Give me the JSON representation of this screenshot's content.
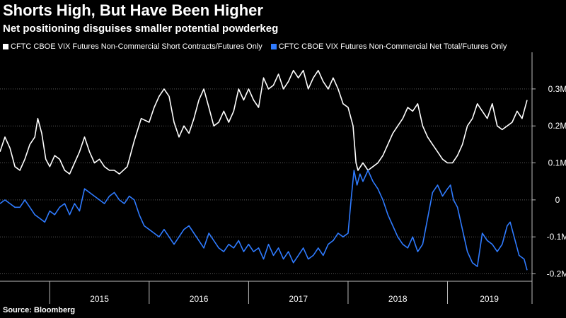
{
  "title": "Shorts High, But Have Been Higher",
  "subtitle": "Net positioning disguises smaller potential powderkeg",
  "source": "Source: Bloomberg",
  "chart_data": {
    "type": "line",
    "yticks": [
      0.3,
      0.2,
      0.1,
      0,
      -0.1,
      -0.2
    ],
    "ytick_labels": [
      "0.3M",
      "0.2M",
      "0.1M",
      "0",
      "-0.1M",
      "-0.2M"
    ],
    "ylim": [
      -0.22,
      0.38
    ],
    "xlim": [
      2014.5,
      2019.85
    ],
    "year_boundaries": [
      2015,
      2016,
      2017,
      2018,
      2019
    ],
    "year_labels": [
      {
        "label": "2015",
        "center": 2015.5
      },
      {
        "label": "2016",
        "center": 2016.5
      },
      {
        "label": "2017",
        "center": 2017.5
      },
      {
        "label": "2018",
        "center": 2018.5
      },
      {
        "label": "2019",
        "center": 2019.42
      }
    ],
    "series": [
      {
        "name": "CFTC CBOE VIX Futures Non-Commercial Short Contracts/Futures Only",
        "color": "#ffffff",
        "points": [
          [
            2014.5,
            0.13
          ],
          [
            2014.55,
            0.17
          ],
          [
            2014.6,
            0.14
          ],
          [
            2014.65,
            0.09
          ],
          [
            2014.7,
            0.08
          ],
          [
            2014.75,
            0.11
          ],
          [
            2014.8,
            0.15
          ],
          [
            2014.85,
            0.17
          ],
          [
            2014.88,
            0.22
          ],
          [
            2014.92,
            0.18
          ],
          [
            2014.96,
            0.11
          ],
          [
            2015.0,
            0.09
          ],
          [
            2015.05,
            0.12
          ],
          [
            2015.1,
            0.11
          ],
          [
            2015.15,
            0.08
          ],
          [
            2015.2,
            0.07
          ],
          [
            2015.25,
            0.1
          ],
          [
            2015.3,
            0.13
          ],
          [
            2015.35,
            0.17
          ],
          [
            2015.4,
            0.13
          ],
          [
            2015.45,
            0.1
          ],
          [
            2015.5,
            0.11
          ],
          [
            2015.55,
            0.09
          ],
          [
            2015.6,
            0.08
          ],
          [
            2015.65,
            0.08
          ],
          [
            2015.7,
            0.07
          ],
          [
            2015.78,
            0.09
          ],
          [
            2015.85,
            0.16
          ],
          [
            2015.92,
            0.22
          ],
          [
            2016.0,
            0.21
          ],
          [
            2016.05,
            0.25
          ],
          [
            2016.1,
            0.28
          ],
          [
            2016.15,
            0.3
          ],
          [
            2016.2,
            0.28
          ],
          [
            2016.25,
            0.21
          ],
          [
            2016.3,
            0.17
          ],
          [
            2016.35,
            0.2
          ],
          [
            2016.4,
            0.18
          ],
          [
            2016.45,
            0.22
          ],
          [
            2016.5,
            0.27
          ],
          [
            2016.55,
            0.3
          ],
          [
            2016.6,
            0.25
          ],
          [
            2016.65,
            0.2
          ],
          [
            2016.7,
            0.21
          ],
          [
            2016.75,
            0.24
          ],
          [
            2016.8,
            0.21
          ],
          [
            2016.85,
            0.24
          ],
          [
            2016.9,
            0.3
          ],
          [
            2016.95,
            0.27
          ],
          [
            2017.0,
            0.3
          ],
          [
            2017.05,
            0.27
          ],
          [
            2017.1,
            0.25
          ],
          [
            2017.15,
            0.33
          ],
          [
            2017.2,
            0.3
          ],
          [
            2017.25,
            0.31
          ],
          [
            2017.3,
            0.34
          ],
          [
            2017.35,
            0.3
          ],
          [
            2017.4,
            0.32
          ],
          [
            2017.45,
            0.35
          ],
          [
            2017.5,
            0.33
          ],
          [
            2017.55,
            0.35
          ],
          [
            2017.6,
            0.3
          ],
          [
            2017.65,
            0.33
          ],
          [
            2017.7,
            0.35
          ],
          [
            2017.75,
            0.32
          ],
          [
            2017.8,
            0.3
          ],
          [
            2017.85,
            0.33
          ],
          [
            2017.9,
            0.3
          ],
          [
            2017.95,
            0.26
          ],
          [
            2018.0,
            0.25
          ],
          [
            2018.05,
            0.2
          ],
          [
            2018.08,
            0.1
          ],
          [
            2018.1,
            0.08
          ],
          [
            2018.15,
            0.1
          ],
          [
            2018.2,
            0.08
          ],
          [
            2018.25,
            0.09
          ],
          [
            2018.3,
            0.1
          ],
          [
            2018.35,
            0.12
          ],
          [
            2018.4,
            0.15
          ],
          [
            2018.45,
            0.18
          ],
          [
            2018.5,
            0.2
          ],
          [
            2018.55,
            0.22
          ],
          [
            2018.6,
            0.25
          ],
          [
            2018.65,
            0.24
          ],
          [
            2018.7,
            0.26
          ],
          [
            2018.75,
            0.2
          ],
          [
            2018.8,
            0.17
          ],
          [
            2018.85,
            0.15
          ],
          [
            2018.9,
            0.13
          ],
          [
            2018.95,
            0.11
          ],
          [
            2019.0,
            0.1
          ],
          [
            2019.05,
            0.1
          ],
          [
            2019.1,
            0.12
          ],
          [
            2019.15,
            0.15
          ],
          [
            2019.2,
            0.2
          ],
          [
            2019.25,
            0.22
          ],
          [
            2019.3,
            0.26
          ],
          [
            2019.35,
            0.24
          ],
          [
            2019.4,
            0.22
          ],
          [
            2019.45,
            0.26
          ],
          [
            2019.5,
            0.2
          ],
          [
            2019.55,
            0.19
          ],
          [
            2019.6,
            0.2
          ],
          [
            2019.65,
            0.21
          ],
          [
            2019.7,
            0.24
          ],
          [
            2019.75,
            0.22
          ],
          [
            2019.8,
            0.27
          ]
        ]
      },
      {
        "name": "CFTC CBOE VIX Futures Non-Commercial Net Total/Futures Only",
        "color": "#2f7bff",
        "points": [
          [
            2014.5,
            -0.01
          ],
          [
            2014.55,
            0.0
          ],
          [
            2014.6,
            -0.01
          ],
          [
            2014.65,
            -0.02
          ],
          [
            2014.7,
            -0.02
          ],
          [
            2014.75,
            0.0
          ],
          [
            2014.8,
            -0.02
          ],
          [
            2014.85,
            -0.04
          ],
          [
            2014.9,
            -0.05
          ],
          [
            2014.95,
            -0.06
          ],
          [
            2015.0,
            -0.03
          ],
          [
            2015.05,
            -0.04
          ],
          [
            2015.1,
            -0.02
          ],
          [
            2015.15,
            -0.01
          ],
          [
            2015.2,
            -0.04
          ],
          [
            2015.25,
            -0.01
          ],
          [
            2015.3,
            -0.03
          ],
          [
            2015.35,
            0.03
          ],
          [
            2015.4,
            0.02
          ],
          [
            2015.45,
            0.01
          ],
          [
            2015.5,
            0.0
          ],
          [
            2015.55,
            -0.01
          ],
          [
            2015.6,
            0.01
          ],
          [
            2015.65,
            0.02
          ],
          [
            2015.7,
            0.0
          ],
          [
            2015.75,
            -0.01
          ],
          [
            2015.8,
            0.01
          ],
          [
            2015.85,
            0.0
          ],
          [
            2015.9,
            -0.04
          ],
          [
            2015.95,
            -0.07
          ],
          [
            2016.0,
            -0.08
          ],
          [
            2016.05,
            -0.09
          ],
          [
            2016.1,
            -0.1
          ],
          [
            2016.15,
            -0.08
          ],
          [
            2016.2,
            -0.1
          ],
          [
            2016.25,
            -0.12
          ],
          [
            2016.3,
            -0.1
          ],
          [
            2016.35,
            -0.08
          ],
          [
            2016.4,
            -0.07
          ],
          [
            2016.45,
            -0.09
          ],
          [
            2016.5,
            -0.11
          ],
          [
            2016.55,
            -0.13
          ],
          [
            2016.6,
            -0.09
          ],
          [
            2016.65,
            -0.11
          ],
          [
            2016.7,
            -0.13
          ],
          [
            2016.75,
            -0.14
          ],
          [
            2016.8,
            -0.12
          ],
          [
            2016.85,
            -0.13
          ],
          [
            2016.9,
            -0.11
          ],
          [
            2016.95,
            -0.14
          ],
          [
            2017.0,
            -0.12
          ],
          [
            2017.05,
            -0.14
          ],
          [
            2017.1,
            -0.13
          ],
          [
            2017.15,
            -0.16
          ],
          [
            2017.2,
            -0.12
          ],
          [
            2017.25,
            -0.15
          ],
          [
            2017.3,
            -0.13
          ],
          [
            2017.35,
            -0.16
          ],
          [
            2017.4,
            -0.14
          ],
          [
            2017.45,
            -0.17
          ],
          [
            2017.5,
            -0.15
          ],
          [
            2017.55,
            -0.13
          ],
          [
            2017.6,
            -0.16
          ],
          [
            2017.65,
            -0.15
          ],
          [
            2017.7,
            -0.13
          ],
          [
            2017.75,
            -0.15
          ],
          [
            2017.8,
            -0.12
          ],
          [
            2017.85,
            -0.11
          ],
          [
            2017.9,
            -0.09
          ],
          [
            2017.95,
            -0.1
          ],
          [
            2018.0,
            -0.09
          ],
          [
            2018.03,
            0.0
          ],
          [
            2018.06,
            0.08
          ],
          [
            2018.09,
            0.04
          ],
          [
            2018.12,
            0.07
          ],
          [
            2018.15,
            0.05
          ],
          [
            2018.2,
            0.08
          ],
          [
            2018.25,
            0.05
          ],
          [
            2018.3,
            0.03
          ],
          [
            2018.35,
            0.0
          ],
          [
            2018.4,
            -0.04
          ],
          [
            2018.45,
            -0.07
          ],
          [
            2018.5,
            -0.1
          ],
          [
            2018.55,
            -0.12
          ],
          [
            2018.6,
            -0.13
          ],
          [
            2018.65,
            -0.1
          ],
          [
            2018.7,
            -0.14
          ],
          [
            2018.75,
            -0.12
          ],
          [
            2018.8,
            -0.05
          ],
          [
            2018.85,
            0.02
          ],
          [
            2018.9,
            0.04
          ],
          [
            2018.95,
            0.01
          ],
          [
            2019.0,
            0.03
          ],
          [
            2019.03,
            0.04
          ],
          [
            2019.06,
            0.0
          ],
          [
            2019.1,
            -0.02
          ],
          [
            2019.15,
            -0.08
          ],
          [
            2019.2,
            -0.14
          ],
          [
            2019.25,
            -0.17
          ],
          [
            2019.3,
            -0.18
          ],
          [
            2019.35,
            -0.09
          ],
          [
            2019.4,
            -0.11
          ],
          [
            2019.45,
            -0.12
          ],
          [
            2019.5,
            -0.14
          ],
          [
            2019.55,
            -0.12
          ],
          [
            2019.6,
            -0.07
          ],
          [
            2019.63,
            -0.06
          ],
          [
            2019.67,
            -0.1
          ],
          [
            2019.72,
            -0.15
          ],
          [
            2019.77,
            -0.16
          ],
          [
            2019.8,
            -0.19
          ]
        ]
      }
    ]
  }
}
